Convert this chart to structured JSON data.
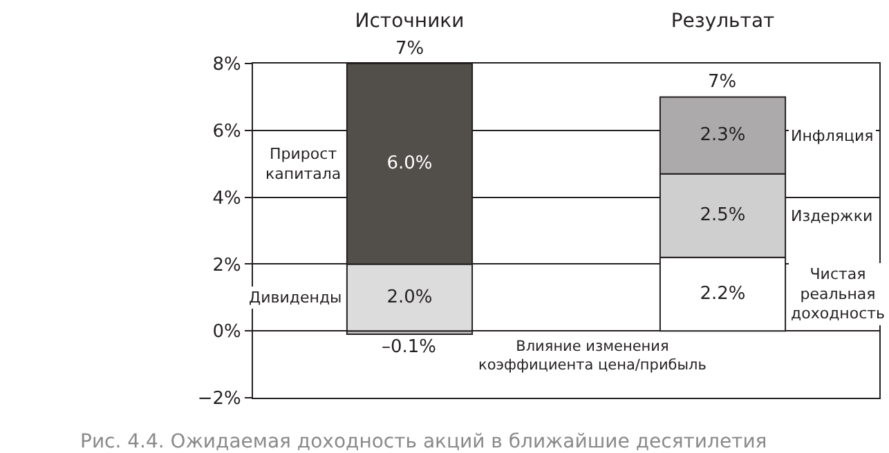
{
  "chart_data": {
    "type": "bar",
    "stacked": true,
    "title": "Рис. 4.4. Ожидаемая доходность акций в ближайшие десятилетия",
    "categories": [
      "Источники",
      "Результат"
    ],
    "series": [
      {
        "name": "Влияние изменения коэффициента цена/прибыль",
        "color": "#c8c6c6",
        "values": [
          -0.1,
          null
        ],
        "value_labels": [
          "–0.1%",
          null
        ]
      },
      {
        "name": "Дивиденды",
        "color": "#dddcdc",
        "values": [
          2.0,
          null
        ],
        "value_labels": [
          "2.0%",
          null
        ]
      },
      {
        "name": "Прирост капитала",
        "color": "#524e4a",
        "values": [
          6.0,
          null
        ],
        "value_labels": [
          "6.0%",
          null
        ]
      },
      {
        "name": "Чистая реальная доходность",
        "color": "#ffffff",
        "values": [
          null,
          2.2
        ],
        "value_labels": [
          null,
          "2.2%"
        ]
      },
      {
        "name": "Издержки",
        "color": "#d0cfcf",
        "values": [
          null,
          2.5
        ],
        "value_labels": [
          null,
          "2.5%"
        ]
      },
      {
        "name": "Инфляция",
        "color": "#acaaaa",
        "values": [
          null,
          2.3
        ],
        "value_labels": [
          null,
          "2.3%"
        ]
      }
    ],
    "totals": [
      "7%",
      "7%"
    ],
    "ylim": [
      -2,
      8
    ],
    "yticks": [
      {
        "value": -2,
        "label": "−2%"
      },
      {
        "value": 0,
        "label": "0%"
      },
      {
        "value": 2,
        "label": "2%"
      },
      {
        "value": 4,
        "label": "4%"
      },
      {
        "value": 6,
        "label": "6%"
      },
      {
        "value": 8,
        "label": "8%"
      }
    ],
    "grid": "y"
  }
}
